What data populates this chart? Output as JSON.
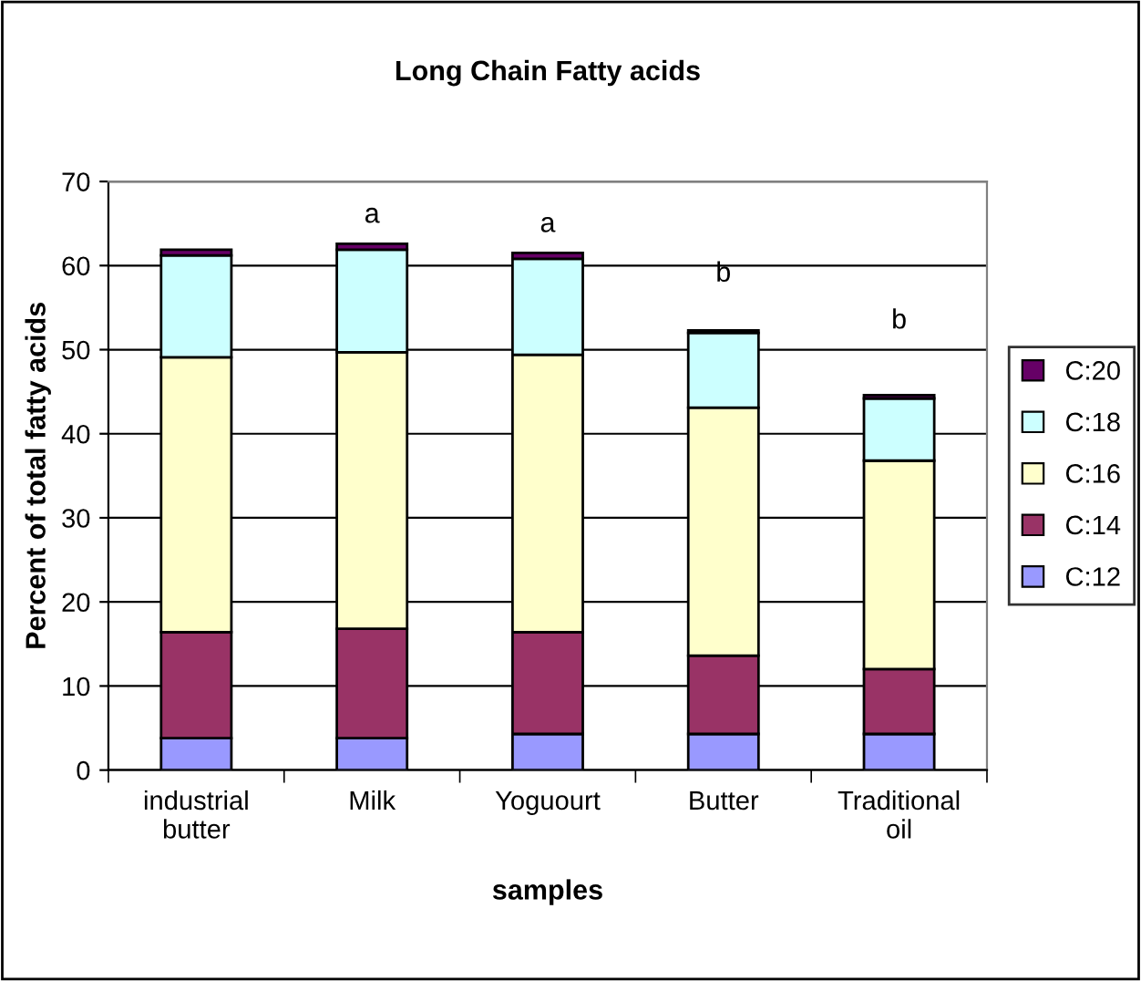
{
  "chart_data": {
    "type": "bar",
    "stacked": true,
    "title": "Long Chain Fatty acids",
    "xlabel": "samples",
    "ylabel": "Percent of total fatty acids",
    "categories": [
      "industrial\nbutter",
      "Milk",
      "Yoguourt",
      "Butter",
      "Traditional\noil"
    ],
    "series": [
      {
        "name": "C:12",
        "color": "#9999ff",
        "values": [
          3.8,
          3.8,
          4.3,
          4.3,
          4.3
        ]
      },
      {
        "name": "C:14",
        "color": "#993366",
        "values": [
          12.6,
          13.0,
          12.1,
          9.3,
          7.7
        ]
      },
      {
        "name": "C:16",
        "color": "#ffffcc",
        "values": [
          32.7,
          32.9,
          33.0,
          29.5,
          24.8
        ]
      },
      {
        "name": "C:18",
        "color": "#ccffff",
        "values": [
          12.1,
          12.2,
          11.4,
          8.9,
          7.4
        ]
      },
      {
        "name": "C:20",
        "color": "#660066",
        "values": [
          0.7,
          0.7,
          0.7,
          0.3,
          0.4
        ]
      }
    ],
    "annotations": [
      "a",
      "a",
      "b",
      "b"
    ],
    "ylim": [
      0,
      70
    ],
    "yticks": [
      0,
      10,
      20,
      30,
      40,
      50,
      60,
      70
    ],
    "grid": "y",
    "legend": "right"
  }
}
